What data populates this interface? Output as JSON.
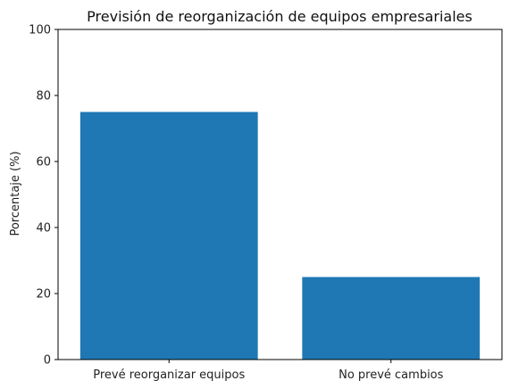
{
  "chart_data": {
    "type": "bar",
    "title": "Previsión de reorganización de equipos empresariales",
    "xlabel": "",
    "ylabel": "Porcentaje (%)",
    "categories": [
      "Prevé reorganizar equipos",
      "No prevé cambios"
    ],
    "values": [
      75,
      25
    ],
    "ylim": [
      0,
      100
    ],
    "yticks": [
      0,
      20,
      40,
      60,
      80,
      100
    ],
    "grid": false,
    "legend": "none",
    "bar_color": "#1f77b4"
  }
}
